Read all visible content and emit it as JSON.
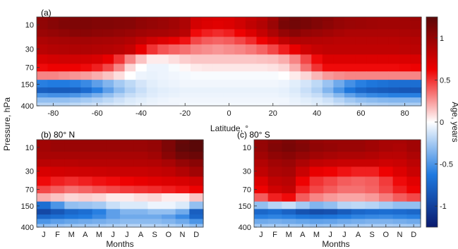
{
  "chart_data": [
    {
      "type": "heatmap",
      "title": "(a)",
      "xlabel": "Latitude, °",
      "ylabel": "Pressure, hPa",
      "x_ticks": [
        "-80",
        "-60",
        "-40",
        "-20",
        "0",
        "20",
        "40",
        "60",
        "80"
      ],
      "x_tick_values": [
        -80,
        -60,
        -40,
        -20,
        0,
        20,
        40,
        60,
        80
      ],
      "xlim": [
        -87.5,
        87.5
      ],
      "y_ticks": [
        "10",
        "30",
        "70",
        "150",
        "400"
      ],
      "y_tick_values": [
        10,
        30,
        70,
        150,
        400
      ],
      "y_scale": "log",
      "ylim": [
        400,
        7
      ],
      "x": [
        -85,
        -80,
        -75,
        -70,
        -65,
        -60,
        -55,
        -50,
        -45,
        -40,
        -35,
        -30,
        -25,
        -20,
        -15,
        -10,
        -5,
        0,
        5,
        10,
        15,
        20,
        25,
        30,
        35,
        40,
        45,
        50,
        55,
        60,
        65,
        70,
        75,
        80,
        85
      ],
      "y": [
        7,
        10,
        15,
        20,
        30,
        50,
        70,
        100,
        150,
        200,
        250,
        300,
        400
      ],
      "values": [
        [
          1.02,
          1.05,
          1.08,
          1.1,
          1.1,
          1.08,
          1.08,
          1.07,
          1.06,
          1.02,
          1.0,
          0.98,
          0.95,
          0.9,
          0.75,
          0.72,
          0.7,
          0.7,
          0.75,
          0.8,
          0.85,
          0.95,
          1.1,
          1.15,
          1.12,
          1.08,
          1.05,
          1.0,
          0.98,
          0.97,
          0.96,
          0.95,
          0.95,
          0.96,
          0.97
        ],
        [
          1.02,
          1.06,
          1.09,
          1.1,
          1.1,
          1.08,
          1.08,
          1.07,
          1.06,
          1.02,
          1.0,
          0.98,
          0.95,
          0.9,
          0.74,
          0.7,
          0.68,
          0.7,
          0.75,
          0.82,
          0.88,
          0.98,
          1.12,
          1.15,
          1.12,
          1.08,
          1.04,
          1.0,
          0.98,
          0.97,
          0.96,
          0.95,
          0.95,
          0.95,
          0.96
        ],
        [
          0.98,
          1.0,
          1.02,
          1.05,
          1.05,
          1.03,
          1.02,
          1.0,
          0.98,
          0.95,
          0.93,
          0.92,
          0.9,
          0.85,
          0.6,
          0.55,
          0.52,
          0.55,
          0.62,
          0.7,
          0.8,
          0.9,
          1.0,
          1.05,
          1.0,
          0.98,
          0.95,
          0.92,
          0.9,
          0.9,
          0.9,
          0.9,
          0.9,
          0.91,
          0.92
        ],
        [
          0.9,
          0.92,
          0.93,
          0.94,
          0.94,
          0.93,
          0.92,
          0.91,
          0.88,
          0.82,
          0.75,
          0.7,
          0.65,
          0.58,
          0.45,
          0.4,
          0.38,
          0.4,
          0.45,
          0.52,
          0.62,
          0.72,
          0.82,
          0.88,
          0.88,
          0.87,
          0.86,
          0.85,
          0.85,
          0.85,
          0.85,
          0.85,
          0.85,
          0.86,
          0.87
        ],
        [
          0.85,
          0.87,
          0.88,
          0.89,
          0.89,
          0.88,
          0.87,
          0.85,
          0.8,
          0.65,
          0.5,
          0.42,
          0.38,
          0.35,
          0.3,
          0.28,
          0.26,
          0.28,
          0.3,
          0.33,
          0.38,
          0.45,
          0.55,
          0.65,
          0.75,
          0.8,
          0.82,
          0.82,
          0.82,
          0.82,
          0.82,
          0.82,
          0.82,
          0.83,
          0.84
        ],
        [
          0.72,
          0.74,
          0.75,
          0.75,
          0.74,
          0.72,
          0.65,
          0.5,
          0.3,
          0.15,
          0.05,
          0.05,
          0.08,
          0.12,
          0.14,
          0.14,
          0.14,
          0.14,
          0.14,
          0.14,
          0.15,
          0.16,
          0.2,
          0.3,
          0.45,
          0.6,
          0.7,
          0.7,
          0.7,
          0.7,
          0.7,
          0.7,
          0.7,
          0.71,
          0.72
        ],
        [
          0.6,
          0.62,
          0.62,
          0.62,
          0.6,
          0.55,
          0.45,
          0.3,
          0.1,
          0.0,
          -0.05,
          -0.05,
          -0.02,
          0.02,
          0.05,
          0.06,
          0.06,
          0.06,
          0.06,
          0.06,
          0.06,
          0.07,
          0.1,
          0.2,
          0.35,
          0.5,
          0.6,
          0.6,
          0.6,
          0.6,
          0.6,
          0.6,
          0.6,
          0.61,
          0.62
        ],
        [
          0.3,
          0.3,
          0.28,
          0.26,
          0.24,
          0.2,
          0.15,
          0.08,
          0.0,
          -0.05,
          -0.06,
          -0.05,
          -0.04,
          -0.03,
          -0.02,
          -0.02,
          -0.02,
          -0.02,
          -0.02,
          -0.02,
          -0.02,
          -0.02,
          0.0,
          0.05,
          0.1,
          0.18,
          0.25,
          0.28,
          0.3,
          0.3,
          0.3,
          0.3,
          0.3,
          0.3,
          0.3
        ],
        [
          -0.6,
          -0.62,
          -0.62,
          -0.6,
          -0.55,
          -0.45,
          -0.35,
          -0.25,
          -0.18,
          -0.12,
          -0.08,
          -0.06,
          -0.05,
          -0.04,
          -0.04,
          -0.04,
          -0.04,
          -0.04,
          -0.04,
          -0.04,
          -0.04,
          -0.04,
          -0.05,
          -0.08,
          -0.12,
          -0.18,
          -0.28,
          -0.4,
          -0.52,
          -0.6,
          -0.65,
          -0.68,
          -0.7,
          -0.7,
          -0.7
        ],
        [
          -0.8,
          -0.82,
          -0.82,
          -0.8,
          -0.72,
          -0.6,
          -0.45,
          -0.32,
          -0.22,
          -0.15,
          -0.1,
          -0.08,
          -0.07,
          -0.06,
          -0.06,
          -0.06,
          -0.06,
          -0.06,
          -0.06,
          -0.06,
          -0.06,
          -0.06,
          -0.07,
          -0.1,
          -0.15,
          -0.22,
          -0.35,
          -0.5,
          -0.65,
          -0.75,
          -0.8,
          -0.82,
          -0.84,
          -0.85,
          -0.85
        ],
        [
          -0.5,
          -0.52,
          -0.52,
          -0.5,
          -0.45,
          -0.38,
          -0.3,
          -0.22,
          -0.16,
          -0.12,
          -0.09,
          -0.07,
          -0.06,
          -0.05,
          -0.05,
          -0.05,
          -0.05,
          -0.05,
          -0.05,
          -0.05,
          -0.05,
          -0.05,
          -0.06,
          -0.08,
          -0.12,
          -0.16,
          -0.24,
          -0.34,
          -0.44,
          -0.52,
          -0.56,
          -0.58,
          -0.6,
          -0.6,
          -0.6
        ],
        [
          -0.3,
          -0.3,
          -0.3,
          -0.28,
          -0.25,
          -0.22,
          -0.18,
          -0.14,
          -0.1,
          -0.08,
          -0.06,
          -0.05,
          -0.04,
          -0.04,
          -0.04,
          -0.04,
          -0.04,
          -0.04,
          -0.04,
          -0.04,
          -0.04,
          -0.04,
          -0.04,
          -0.06,
          -0.08,
          -0.1,
          -0.14,
          -0.2,
          -0.26,
          -0.3,
          -0.32,
          -0.34,
          -0.35,
          -0.35,
          -0.35
        ],
        [
          -0.2,
          -0.2,
          -0.2,
          -0.18,
          -0.16,
          -0.14,
          -0.12,
          -0.1,
          -0.08,
          -0.06,
          -0.05,
          -0.04,
          -0.04,
          -0.03,
          -0.03,
          -0.03,
          -0.03,
          -0.03,
          -0.03,
          -0.03,
          -0.03,
          -0.03,
          -0.04,
          -0.05,
          -0.06,
          -0.08,
          -0.1,
          -0.14,
          -0.18,
          -0.2,
          -0.22,
          -0.23,
          -0.24,
          -0.24,
          -0.24
        ]
      ]
    },
    {
      "type": "heatmap",
      "title": "(b) 80° N",
      "xlabel": "Months",
      "ylabel": "Pressure, hPa",
      "x_ticks": [
        "J",
        "F",
        "M",
        "A",
        "M",
        "J",
        "J",
        "A",
        "S",
        "O",
        "N",
        "D"
      ],
      "y_ticks": [
        "10",
        "30",
        "70",
        "150",
        "400"
      ],
      "y_tick_values": [
        10,
        30,
        70,
        150,
        400
      ],
      "y_scale": "log",
      "ylim": [
        400,
        7
      ],
      "y": [
        7,
        10,
        15,
        20,
        30,
        50,
        70,
        100,
        150,
        200,
        250,
        300,
        400
      ],
      "values": [
        [
          0.95,
          0.98,
          0.98,
          0.98,
          0.98,
          0.98,
          0.98,
          0.98,
          1.0,
          1.1,
          1.2,
          1.25
        ],
        [
          0.95,
          0.98,
          0.98,
          0.98,
          0.98,
          0.98,
          0.98,
          0.98,
          1.0,
          1.1,
          1.22,
          1.25
        ],
        [
          0.92,
          0.92,
          0.92,
          0.92,
          0.92,
          0.92,
          0.92,
          0.92,
          0.95,
          1.05,
          1.15,
          1.18
        ],
        [
          0.85,
          0.85,
          0.85,
          0.86,
          0.86,
          0.86,
          0.87,
          0.87,
          0.88,
          0.92,
          1.0,
          1.05
        ],
        [
          0.72,
          0.74,
          0.75,
          0.76,
          0.77,
          0.78,
          0.78,
          0.78,
          0.8,
          0.82,
          0.88,
          0.95
        ],
        [
          0.6,
          0.55,
          0.52,
          0.55,
          0.58,
          0.6,
          0.62,
          0.65,
          0.68,
          0.7,
          0.72,
          0.75
        ],
        [
          0.45,
          0.4,
          0.35,
          0.38,
          0.42,
          0.45,
          0.48,
          0.5,
          0.52,
          0.55,
          0.58,
          0.62
        ],
        [
          0.2,
          0.15,
          0.1,
          0.12,
          0.1,
          0.05,
          0.05,
          0.08,
          0.1,
          0.05,
          0.05,
          0.15
        ],
        [
          -0.7,
          -0.5,
          -0.3,
          -0.28,
          -0.25,
          -0.15,
          -0.1,
          -0.1,
          -0.05,
          -0.05,
          -0.1,
          -0.3
        ],
        [
          -0.95,
          -0.85,
          -0.75,
          -0.7,
          -0.6,
          -0.45,
          -0.35,
          -0.35,
          -0.3,
          -0.3,
          -0.4,
          -0.8
        ],
        [
          -0.75,
          -0.7,
          -0.65,
          -0.62,
          -0.55,
          -0.45,
          -0.4,
          -0.4,
          -0.4,
          -0.45,
          -0.55,
          -0.75
        ],
        [
          -0.5,
          -0.45,
          -0.42,
          -0.4,
          -0.38,
          -0.35,
          -0.32,
          -0.32,
          -0.32,
          -0.35,
          -0.4,
          -0.5
        ],
        [
          -0.3,
          -0.28,
          -0.26,
          -0.25,
          -0.24,
          -0.22,
          -0.2,
          -0.2,
          -0.2,
          -0.22,
          -0.25,
          -0.3
        ]
      ]
    },
    {
      "type": "heatmap",
      "title": "(c) 80° S",
      "xlabel": "Months",
      "x_ticks": [
        "J",
        "F",
        "M",
        "A",
        "M",
        "J",
        "J",
        "A",
        "S",
        "O",
        "N",
        "D"
      ],
      "y_ticks": [
        "10",
        "30",
        "70",
        "150",
        "400"
      ],
      "y_tick_values": [
        10,
        30,
        70,
        150,
        400
      ],
      "y_scale": "log",
      "ylim": [
        400,
        7
      ],
      "y": [
        7,
        10,
        15,
        20,
        30,
        50,
        70,
        100,
        150,
        200,
        250,
        300,
        400
      ],
      "values": [
        [
          1.0,
          1.05,
          1.1,
          1.05,
          1.0,
          0.98,
          0.98,
          0.98,
          0.95,
          0.92,
          0.92,
          0.95
        ],
        [
          1.0,
          1.08,
          1.12,
          1.08,
          1.02,
          1.0,
          0.98,
          0.98,
          0.95,
          0.92,
          0.9,
          0.95
        ],
        [
          0.95,
          1.02,
          1.05,
          1.0,
          0.95,
          0.92,
          0.9,
          0.9,
          0.88,
          0.85,
          0.85,
          0.9
        ],
        [
          0.88,
          0.95,
          0.98,
          0.9,
          0.82,
          0.8,
          0.78,
          0.78,
          0.78,
          0.76,
          0.78,
          0.84
        ],
        [
          0.82,
          0.9,
          0.92,
          0.78,
          0.65,
          0.62,
          0.58,
          0.55,
          0.55,
          0.62,
          0.7,
          0.78
        ],
        [
          0.7,
          0.82,
          0.85,
          0.62,
          0.5,
          0.45,
          0.4,
          0.38,
          0.4,
          0.48,
          0.6,
          0.68
        ],
        [
          0.62,
          0.75,
          0.8,
          0.55,
          0.45,
          0.4,
          0.35,
          0.35,
          0.38,
          0.45,
          0.55,
          0.62
        ],
        [
          0.4,
          0.55,
          0.6,
          0.4,
          0.3,
          0.25,
          0.22,
          0.22,
          0.25,
          0.32,
          0.4,
          0.45
        ],
        [
          -0.3,
          -0.2,
          -0.15,
          -0.25,
          -0.35,
          -0.3,
          -0.2,
          -0.18,
          -0.2,
          -0.25,
          -0.3,
          -0.3
        ],
        [
          -0.75,
          -0.7,
          -0.78,
          -0.88,
          -0.92,
          -0.9,
          -0.82,
          -0.75,
          -0.72,
          -0.7,
          -0.72,
          -0.75
        ],
        [
          -0.6,
          -0.58,
          -0.6,
          -0.65,
          -0.68,
          -0.66,
          -0.62,
          -0.58,
          -0.56,
          -0.55,
          -0.58,
          -0.6
        ],
        [
          -0.4,
          -0.38,
          -0.4,
          -0.42,
          -0.44,
          -0.43,
          -0.4,
          -0.38,
          -0.36,
          -0.36,
          -0.38,
          -0.4
        ],
        [
          -0.25,
          -0.24,
          -0.25,
          -0.26,
          -0.28,
          -0.27,
          -0.25,
          -0.24,
          -0.23,
          -0.23,
          -0.24,
          -0.25
        ]
      ]
    },
    {
      "type": "colorbar",
      "label": "Age, years",
      "range": [
        -1.25,
        1.25
      ],
      "ticks": [
        "1",
        "0.5",
        "0",
        "-0.5",
        "-1"
      ],
      "tick_values": [
        1,
        0.5,
        0,
        -0.5,
        -1
      ],
      "colormap_stops": [
        "#0a1a6e",
        "#1f7ae0",
        "#ffffff",
        "#ee0000",
        "#5a0808"
      ]
    }
  ]
}
